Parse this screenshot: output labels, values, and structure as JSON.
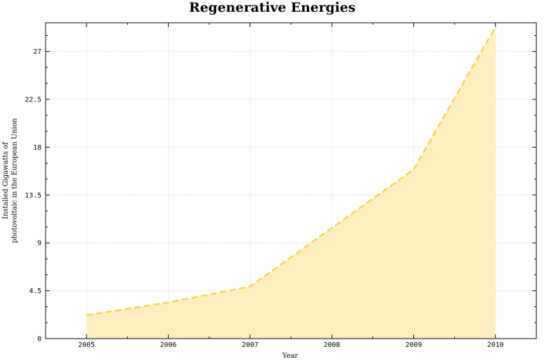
{
  "chart_data": {
    "type": "area",
    "title": "Regenerative Energies",
    "xlabel": "Year",
    "ylabel_line1": "Installed Gigawatts of",
    "ylabel_line2": "photovoltaic in the European Union",
    "x": [
      2005,
      2006,
      2007,
      2008,
      2009,
      2010
    ],
    "series": [
      {
        "values": [
          2.2,
          3.4,
          4.9,
          10.4,
          15.9,
          29.3
        ]
      }
    ],
    "xlim": [
      2004.5,
      2010.5
    ],
    "ylim": [
      0,
      29.7
    ],
    "x_ticks": [
      "2005",
      "2006",
      "2007",
      "2008",
      "2009",
      "2010"
    ],
    "y_ticks": [
      0,
      4.5,
      9,
      13.5,
      18,
      22.5,
      27
    ],
    "y_tick_labels": [
      "0",
      "4.5",
      "9",
      "13.5",
      "18",
      "22.5",
      "27"
    ],
    "grid": true,
    "line_style": "dashed",
    "colors": {
      "line": "#f7d245",
      "fill": "#fdefbd"
    }
  }
}
